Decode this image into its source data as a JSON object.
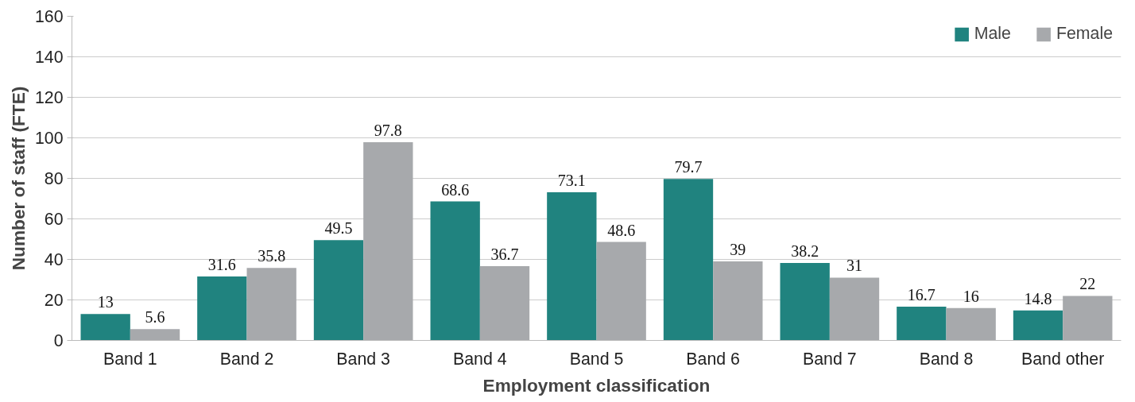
{
  "chart_data": {
    "type": "bar",
    "xlabel": "Employment classification",
    "ylabel": "Number of staff (FTE)",
    "categories": [
      "Band 1",
      "Band 2",
      "Band 3",
      "Band 4",
      "Band 5",
      "Band 6",
      "Band 7",
      "Band 8",
      "Band other"
    ],
    "series": [
      {
        "name": "Male",
        "color": "#20837f",
        "values": [
          13,
          31.6,
          49.5,
          68.6,
          73.1,
          79.7,
          38.2,
          16.7,
          14.8
        ]
      },
      {
        "name": "Female",
        "color": "#a7a9ac",
        "values": [
          5.6,
          35.8,
          97.8,
          36.7,
          48.6,
          39,
          31,
          16,
          22
        ]
      }
    ],
    "ylim": [
      0,
      160
    ],
    "yticks": [
      0,
      20,
      40,
      60,
      80,
      100,
      120,
      140,
      160
    ],
    "grid": "y",
    "legend": "top right",
    "data_labels": true
  }
}
